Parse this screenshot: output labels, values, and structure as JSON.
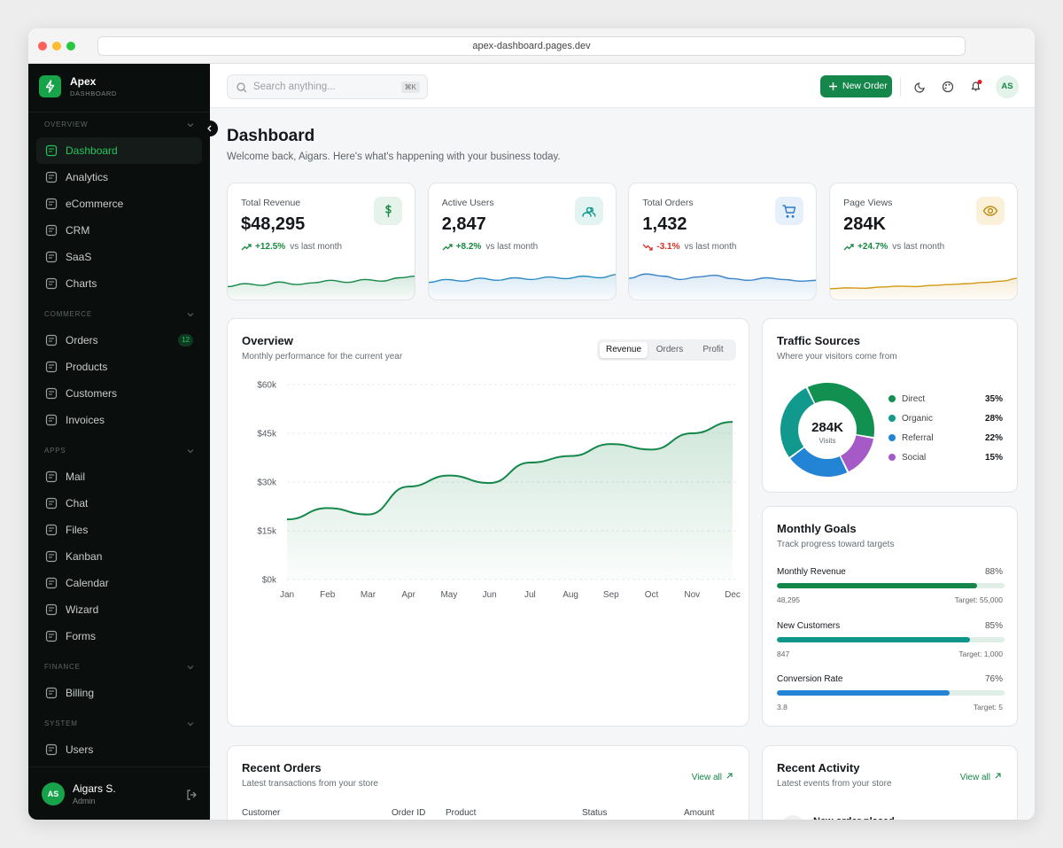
{
  "browser": {
    "url": "apex-dashboard.pages.dev"
  },
  "sidebar": {
    "brand": "Apex",
    "brand_sub": "DASHBOARD",
    "sections": [
      {
        "title": "OVERVIEW",
        "items": [
          {
            "label": "Dashboard",
            "active": true
          },
          {
            "label": "Analytics"
          },
          {
            "label": "eCommerce"
          },
          {
            "label": "CRM"
          },
          {
            "label": "SaaS"
          },
          {
            "label": "Charts"
          }
        ]
      },
      {
        "title": "COMMERCE",
        "items": [
          {
            "label": "Orders",
            "badge": "12"
          },
          {
            "label": "Products"
          },
          {
            "label": "Customers"
          },
          {
            "label": "Invoices"
          }
        ]
      },
      {
        "title": "APPS",
        "items": [
          {
            "label": "Mail"
          },
          {
            "label": "Chat"
          },
          {
            "label": "Files"
          },
          {
            "label": "Kanban"
          },
          {
            "label": "Calendar"
          },
          {
            "label": "Wizard"
          },
          {
            "label": "Forms"
          }
        ]
      },
      {
        "title": "FINANCE",
        "items": [
          {
            "label": "Billing"
          }
        ]
      },
      {
        "title": "SYSTEM",
        "items": [
          {
            "label": "Users"
          }
        ]
      }
    ],
    "user": {
      "initials": "AS",
      "name": "Aigars S.",
      "role": "Admin"
    }
  },
  "topbar": {
    "search_placeholder": "Search anything...",
    "shortcut": "⌘K",
    "new_order": "New Order",
    "avatar": "AS"
  },
  "header": {
    "title": "Dashboard",
    "subtitle": "Welcome back, Aigars. Here's what's happening with your business today."
  },
  "stats": [
    {
      "label": "Total Revenue",
      "value": "$48,295",
      "change": "+12.5%",
      "trend": "up",
      "note": "vs last month",
      "color": "#18894a",
      "icon_bg": "#e5f3ea",
      "sparkline": {
        "values": [
          35,
          42,
          38,
          46,
          40,
          44,
          50,
          45,
          52,
          48,
          56,
          60
        ],
        "ylim": [
          0,
          100
        ]
      }
    },
    {
      "label": "Active Users",
      "value": "2,847",
      "change": "+8.2%",
      "trend": "up",
      "note": "vs last month",
      "color": "#2b8cc4",
      "icon_bg": "#e2f3f1",
      "sparkline": {
        "values": [
          45,
          52,
          48,
          55,
          50,
          56,
          52,
          58,
          54,
          60,
          56,
          64
        ],
        "ylim": [
          0,
          100
        ]
      }
    },
    {
      "label": "Total Orders",
      "value": "1,432",
      "change": "-3.1%",
      "trend": "down",
      "note": "vs last month",
      "color": "#3a84c9",
      "icon_bg": "#e6f0fa",
      "sparkline": {
        "values": [
          55,
          65,
          60,
          52,
          58,
          62,
          54,
          50,
          56,
          52,
          48,
          50
        ],
        "ylim": [
          0,
          100
        ]
      }
    },
    {
      "label": "Page Views",
      "value": "284K",
      "change": "+24.7%",
      "trend": "up",
      "note": "vs last month",
      "color": "#d19a16",
      "icon_bg": "#fbf0da",
      "sparkline": {
        "values": [
          30,
          32,
          31,
          34,
          36,
          35,
          38,
          40,
          42,
          45,
          48,
          55
        ],
        "ylim": [
          0,
          100
        ]
      }
    }
  ],
  "chart_data": [
    {
      "type": "line",
      "title": "Overview",
      "subtitle": "Monthly performance for the current year",
      "tabs": [
        "Revenue",
        "Orders",
        "Profit"
      ],
      "active_tab": 0,
      "categories": [
        "Jan",
        "Feb",
        "Mar",
        "Apr",
        "May",
        "Jun",
        "Jul",
        "Aug",
        "Sep",
        "Oct",
        "Nov",
        "Dec"
      ],
      "values": [
        18500,
        22000,
        20000,
        28600,
        32000,
        29700,
        36000,
        38000,
        41700,
        40000,
        45000,
        48500
      ],
      "color": "#15874a",
      "area": true,
      "grid": true,
      "ylim": [
        0,
        60000
      ],
      "yticks": [
        {
          "value": 0,
          "label": "$0k"
        },
        {
          "value": 15000,
          "label": "$15k"
        },
        {
          "value": 30000,
          "label": "$30k"
        },
        {
          "value": 45000,
          "label": "$45k"
        },
        {
          "value": 60000,
          "label": "$60k"
        }
      ]
    },
    {
      "type": "pie",
      "donut": true,
      "title": "Traffic Sources",
      "subtitle": "Where your visitors come from",
      "center_value": "284K",
      "center_label": "Visits",
      "categories": [
        "Direct",
        "Organic",
        "Referral",
        "Social"
      ],
      "values": [
        35,
        28,
        22,
        15
      ],
      "value_labels": [
        "35%",
        "28%",
        "22%",
        "15%"
      ],
      "colors": [
        "#11904f",
        "#10998c",
        "#2384d6",
        "#a55ac8"
      ]
    }
  ],
  "goals": {
    "title": "Monthly Goals",
    "subtitle": "Track progress toward targets",
    "items": [
      {
        "name": "Monthly Revenue",
        "current": "48,295",
        "target": "Target: 55,000",
        "color": "#15874a"
      },
      {
        "name": "New Customers",
        "current": "847",
        "target": "Target: 1,000",
        "color": "#0f968a"
      },
      {
        "name": "Conversion Rate",
        "current": "3.8",
        "target": "Target: 5",
        "color": "#2483d5"
      }
    ],
    "values": [
      88,
      85,
      76
    ],
    "value_labels": [
      "88%",
      "85%",
      "76%"
    ]
  },
  "recent_orders": {
    "title": "Recent Orders",
    "subtitle": "Latest transactions from your store",
    "link": "View all",
    "columns": [
      "Customer",
      "Order ID",
      "Product",
      "Status",
      "Amount"
    ]
  },
  "recent_activity": {
    "title": "Recent Activity",
    "subtitle": "Latest events from your store",
    "link": "View all",
    "items": [
      {
        "title": "New order placed"
      }
    ]
  }
}
